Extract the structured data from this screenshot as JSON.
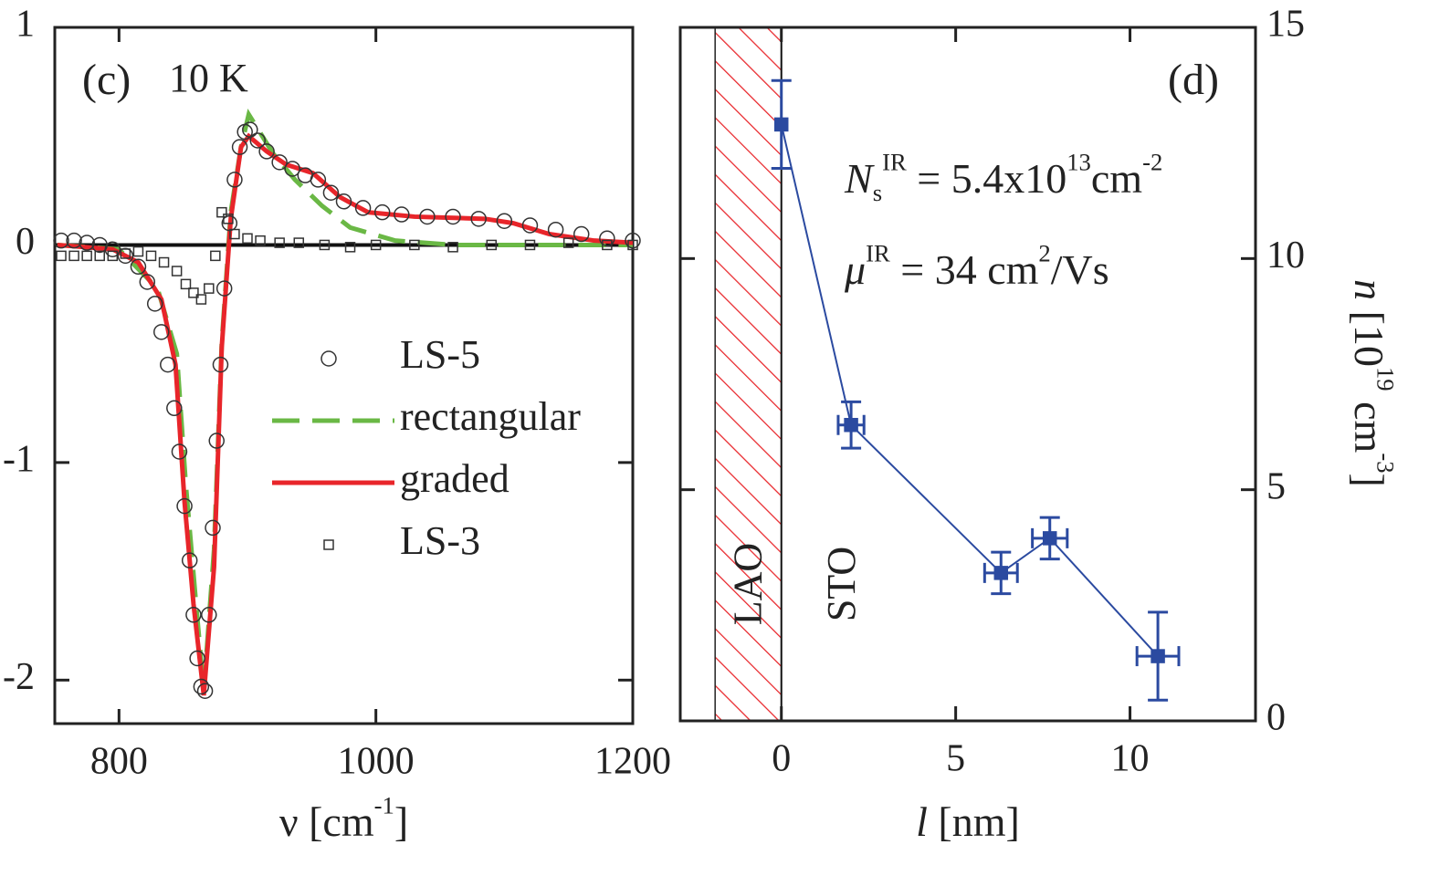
{
  "chart_data": [
    {
      "type": "line",
      "label": "(c)",
      "annotation": "10 K",
      "xlabel": [
        {
          "text": "ν [cm"
        },
        {
          "text": "-1",
          "shift": "sup"
        },
        {
          "text": "]"
        }
      ],
      "xlim": [
        750,
        1200
      ],
      "ylim": [
        -2.2,
        1
      ],
      "xticks": [
        800,
        1000,
        1200
      ],
      "yticks": [
        -2,
        -1,
        0,
        1
      ],
      "zero_line": 0,
      "series": [
        {
          "name": "LS-5",
          "marker": "circle",
          "color": "#333333",
          "x": [
            755,
            765,
            775,
            785,
            795,
            805,
            815,
            822,
            828,
            833,
            838,
            843,
            847,
            851,
            855,
            858,
            861,
            864,
            867,
            870,
            873,
            876,
            879,
            882,
            886,
            890,
            894,
            898,
            902,
            908,
            915,
            925,
            935,
            945,
            955,
            965,
            975,
            990,
            1005,
            1020,
            1040,
            1060,
            1080,
            1100,
            1120,
            1140,
            1160,
            1180,
            1200
          ],
          "values": [
            0.02,
            0.02,
            0.01,
            0,
            -0.02,
            -0.05,
            -0.1,
            -0.17,
            -0.27,
            -0.4,
            -0.55,
            -0.75,
            -0.95,
            -1.2,
            -1.45,
            -1.7,
            -1.9,
            -2.03,
            -2.05,
            -1.7,
            -1.3,
            -0.9,
            -0.55,
            -0.2,
            0.1,
            0.3,
            0.45,
            0.52,
            0.53,
            0.48,
            0.43,
            0.38,
            0.35,
            0.32,
            0.3,
            0.24,
            0.2,
            0.17,
            0.15,
            0.14,
            0.13,
            0.13,
            0.12,
            0.11,
            0.09,
            0.07,
            0.05,
            0.03,
            0.02
          ]
        },
        {
          "name": "rectangular",
          "dash": true,
          "color": "#6ab845",
          "x": [
            752,
            800,
            830,
            845,
            852,
            860,
            866,
            874,
            880,
            887,
            895,
            901,
            920,
            937,
            958,
            980,
            1015,
            1060,
            1200
          ],
          "values": [
            0,
            -0.02,
            -0.2,
            -0.5,
            -1.1,
            -1.65,
            -2.05,
            -1.4,
            -0.45,
            0.15,
            0.45,
            0.6,
            0.42,
            0.3,
            0.18,
            0.08,
            0.02,
            0,
            0
          ]
        },
        {
          "name": "graded",
          "color": "#e8252a",
          "x": [
            752,
            795,
            815,
            833,
            844,
            851,
            858,
            866,
            874,
            880,
            887,
            895,
            901,
            915,
            930,
            951,
            972,
            994,
            1030,
            1085,
            1107,
            1135,
            1170,
            1200
          ],
          "values": [
            0,
            -0.02,
            -0.08,
            -0.25,
            -0.55,
            -1.18,
            -1.65,
            -2.07,
            -1.48,
            -0.47,
            0.12,
            0.45,
            0.5,
            0.43,
            0.37,
            0.33,
            0.22,
            0.15,
            0.13,
            0.12,
            0.1,
            0.05,
            0.02,
            0.01
          ]
        },
        {
          "name": "LS-3",
          "marker": "square",
          "color": "#333333",
          "x": [
            755,
            765,
            775,
            785,
            795,
            805,
            815,
            825,
            835,
            845,
            852,
            858,
            864,
            870,
            875,
            880,
            885,
            890,
            900,
            910,
            925,
            940,
            960,
            980,
            1000,
            1030,
            1060,
            1090,
            1120,
            1150,
            1180,
            1200
          ],
          "values": [
            -0.05,
            -0.05,
            -0.05,
            -0.05,
            -0.05,
            -0.04,
            -0.03,
            -0.05,
            -0.08,
            -0.12,
            -0.18,
            -0.22,
            -0.25,
            -0.2,
            -0.05,
            0.15,
            0.12,
            0.05,
            0.03,
            0.02,
            0.01,
            0.01,
            0,
            -0.01,
            0,
            0,
            -0.01,
            0,
            0,
            0.01,
            0,
            0
          ]
        }
      ]
    },
    {
      "type": "scatter",
      "label": "(d)",
      "x": [
        0,
        2.0,
        6.3,
        7.7,
        10.8
      ],
      "values": [
        12.9,
        6.4,
        3.2,
        3.95,
        1.4
      ],
      "yerr": [
        0.95,
        0.5,
        0.45,
        0.45,
        0.95
      ],
      "xerr": [
        null,
        0.37,
        0.47,
        0.5,
        0.6
      ],
      "color": "#2b4aa0",
      "xlim": [
        -2.9,
        13.6
      ],
      "ylim": [
        0,
        15
      ],
      "xticks": [
        0,
        5,
        10
      ],
      "yticks": [
        0,
        5,
        10,
        15
      ],
      "yaxis": "right",
      "region": [
        -1.9,
        0
      ],
      "region_color": "#e8252a",
      "region_labels": [
        "LAO",
        "STO"
      ],
      "annotations": [
        [
          {
            "text": "N",
            "style": "italic"
          },
          {
            "text": "s",
            "shift": "sub"
          },
          {
            "text": "IR",
            "shift": "sup"
          },
          {
            "text": " = 5.4x10"
          },
          {
            "text": "13",
            "shift": "sup"
          },
          {
            "text": "cm"
          },
          {
            "text": "-2",
            "shift": "sup"
          }
        ],
        [
          {
            "text": "μ",
            "style": "italic"
          },
          {
            "text": "IR",
            "shift": "sup"
          },
          {
            "text": " = 34 cm"
          },
          {
            "text": "2",
            "shift": "sup"
          },
          {
            "text": "/Vs"
          }
        ]
      ],
      "xlabel": [
        {
          "text": "l",
          "style": "italic"
        },
        {
          "text": " [nm]"
        }
      ],
      "ylabel": [
        {
          "text": "n",
          "style": "italic"
        },
        {
          "text": " [10"
        },
        {
          "text": "19",
          "shift": "sup"
        },
        {
          "text": " cm"
        },
        {
          "text": "-3",
          "shift": "sup"
        },
        {
          "text": "]"
        }
      ]
    }
  ]
}
